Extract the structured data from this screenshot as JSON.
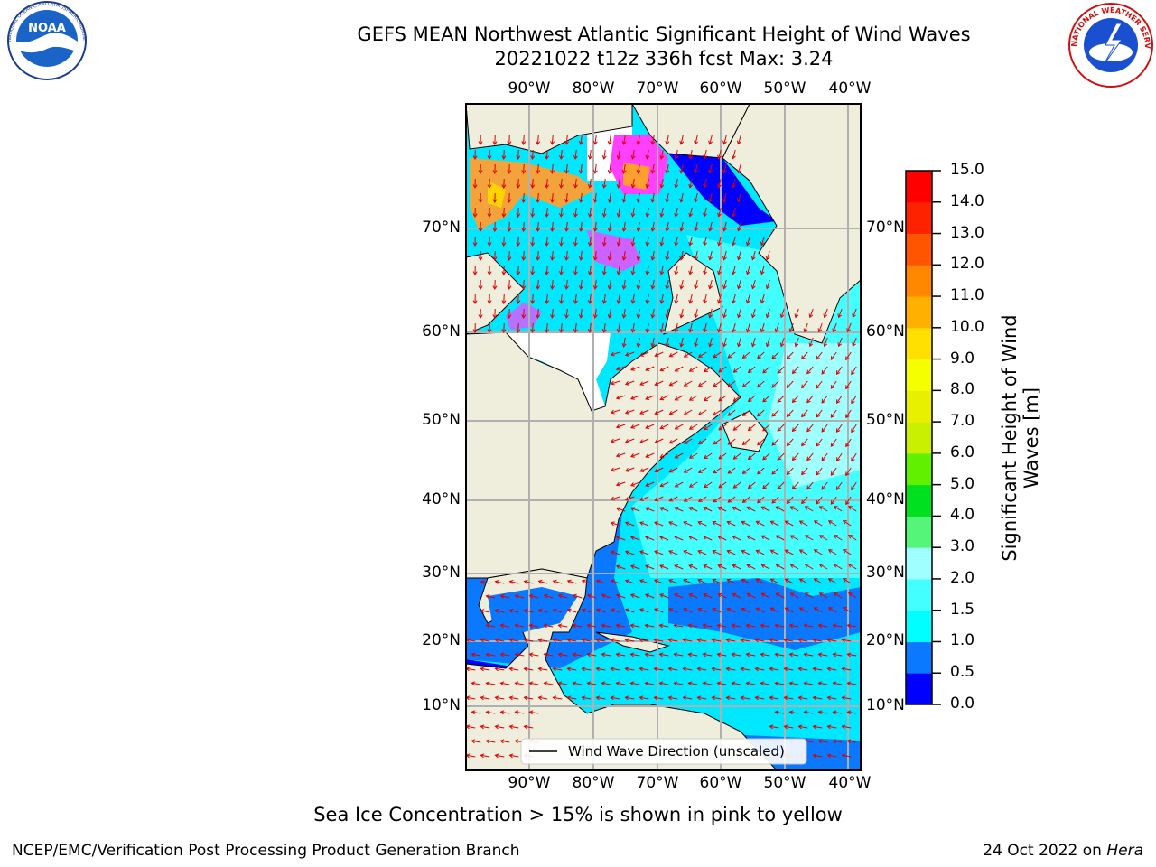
{
  "header": {
    "title_line1": "GEFS MEAN Northwest Atlantic Significant Height of Wind Waves",
    "title_line2": "20221022 t12z 336h fcst   Max: 3.24"
  },
  "logos": {
    "left": {
      "name": "noaa-logo",
      "text": "NOAA",
      "ring_text": "NATIONAL OCEANIC AND ATMOSPHERIC ADMINISTRATION · U.S. DEPARTMENT OF COMMERCE"
    },
    "right": {
      "name": "nws-logo",
      "ring_text": "NATIONAL WEATHER SERVICE"
    }
  },
  "map": {
    "lon_labels": [
      "90°W",
      "80°W",
      "70°W",
      "60°W",
      "50°W",
      "40°W"
    ],
    "lat_labels": [
      "70°N",
      "60°N",
      "50°N",
      "40°N",
      "30°N",
      "20°N",
      "10°N"
    ],
    "legend_text": "Wind Wave Direction (unscaled)",
    "colors": {
      "land": "#efeddc",
      "ice_pink": "#ff40ff",
      "ice_orange": "#ff9f30",
      "ice_yellow": "#ffd400",
      "wave_deep": "#0000ff",
      "wave_blue": "#0a78ff",
      "wave_cyan": "#00e8ff",
      "wave_light": "#44ffff",
      "wave_pale": "#a0ffff",
      "arrow": "#e00000",
      "grid": "#b0b0b0"
    }
  },
  "colorbar": {
    "label": "Significant Height of Wind Waves [m]",
    "ticks": [
      "0.0",
      "0.5",
      "1.0",
      "1.5",
      "2.0",
      "3.0",
      "4.0",
      "5.0",
      "6.0",
      "7.0",
      "8.0",
      "9.0",
      "10.0",
      "11.0",
      "12.0",
      "13.0",
      "14.0",
      "15.0"
    ],
    "colors": [
      "#0000ff",
      "#0a78ff",
      "#00ffff",
      "#44ffff",
      "#a0ffff",
      "#55f57a",
      "#00e020",
      "#60f000",
      "#c8f000",
      "#e8f000",
      "#f5ff00",
      "#ffe000",
      "#ffb000",
      "#ff8800",
      "#ff5500",
      "#ff2200",
      "#ff0000"
    ]
  },
  "bottom_note": "Sea Ice Concentration > 15% is shown in pink to yellow",
  "footer": {
    "left": "NCEP/EMC/Verification Post Processing Product Generation Branch",
    "right_date": "24 Oct 2022 on ",
    "right_host": "Hera"
  }
}
